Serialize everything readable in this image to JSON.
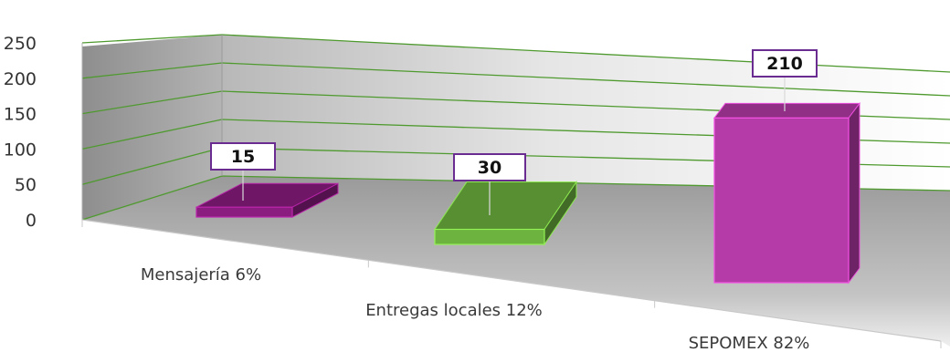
{
  "chart_data": {
    "type": "bar",
    "style": "3d-perspective",
    "categories": [
      "Mensajería 6%",
      "Entregas locales 12%",
      "SEPOMEX 82%"
    ],
    "values": [
      15,
      30,
      210
    ],
    "data_labels": [
      "15",
      "30",
      "210"
    ],
    "y_ticks": [
      "0",
      "50",
      "100",
      "150",
      "200",
      "250"
    ],
    "ylim": [
      0,
      250
    ],
    "grid": true,
    "legend": "none",
    "colors": {
      "bars": [
        "#8B1C80",
        "#6DB33F",
        "#B53BA9"
      ],
      "gridlines": "#4F9A2F",
      "floor": "#A6A6A6",
      "back_wall": "#C8C8C8"
    }
  }
}
